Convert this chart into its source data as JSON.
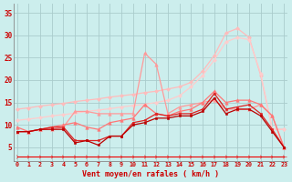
{
  "x": [
    0,
    1,
    2,
    3,
    4,
    5,
    6,
    7,
    8,
    9,
    10,
    11,
    12,
    13,
    14,
    15,
    16,
    17,
    18,
    19,
    20,
    21,
    22,
    23
  ],
  "background_color": "#cceeed",
  "grid_color": "#aacccc",
  "xlabel": "Vent moyen/en rafales ( km/h )",
  "ylim": [
    2,
    37
  ],
  "xlim": [
    -0.3,
    23.3
  ],
  "yticks": [
    5,
    10,
    15,
    20,
    25,
    30,
    35
  ],
  "lines": [
    {
      "color": "#ffbbbb",
      "y": [
        13.5,
        13.8,
        14.2,
        14.5,
        14.8,
        15.2,
        15.5,
        15.8,
        16.2,
        16.5,
        16.8,
        17.2,
        17.5,
        18.0,
        18.5,
        19.5,
        22.0,
        25.5,
        30.5,
        31.5,
        29.5,
        21.0,
        9.0,
        9.0
      ],
      "marker": "D",
      "markersize": 2.0,
      "linewidth": 0.9,
      "zorder": 2
    },
    {
      "color": "#ffcccc",
      "y": [
        11.0,
        11.3,
        11.6,
        12.0,
        12.3,
        12.6,
        13.0,
        13.3,
        13.6,
        14.0,
        14.3,
        14.6,
        15.0,
        15.5,
        16.5,
        18.5,
        21.0,
        24.5,
        28.5,
        29.5,
        29.0,
        21.5,
        9.0,
        9.0
      ],
      "marker": "D",
      "markersize": 2.0,
      "linewidth": 0.9,
      "zorder": 2
    },
    {
      "color": "#ff9999",
      "y": [
        8.5,
        8.5,
        9.0,
        9.0,
        9.5,
        13.0,
        13.0,
        12.5,
        12.5,
        12.5,
        12.5,
        26.0,
        23.5,
        12.5,
        14.0,
        14.5,
        15.0,
        15.5,
        13.5,
        13.5,
        13.5,
        14.5,
        12.0,
        5.0
      ],
      "marker": "^",
      "markersize": 2.5,
      "linewidth": 0.9,
      "zorder": 3
    },
    {
      "color": "#ff7777",
      "y": [
        9.5,
        8.5,
        9.0,
        9.5,
        10.0,
        10.5,
        9.5,
        9.0,
        10.5,
        11.0,
        11.5,
        14.5,
        12.5,
        12.0,
        13.0,
        13.5,
        15.0,
        17.5,
        15.0,
        15.5,
        15.5,
        14.5,
        12.0,
        5.0
      ],
      "marker": "^",
      "markersize": 2.5,
      "linewidth": 0.9,
      "zorder": 3
    },
    {
      "color": "#dd2222",
      "y": [
        8.5,
        8.5,
        9.0,
        9.5,
        9.5,
        6.5,
        6.5,
        6.5,
        7.5,
        7.5,
        10.5,
        11.0,
        12.5,
        12.0,
        12.5,
        12.5,
        13.5,
        17.0,
        13.5,
        14.0,
        14.5,
        12.5,
        9.0,
        5.0
      ],
      "marker": "s",
      "markersize": 1.8,
      "linewidth": 0.9,
      "zorder": 4
    },
    {
      "color": "#bb0000",
      "y": [
        8.5,
        8.5,
        9.0,
        9.0,
        9.0,
        6.0,
        6.5,
        5.5,
        7.5,
        7.5,
        10.0,
        10.5,
        11.5,
        11.5,
        12.0,
        12.0,
        13.0,
        16.0,
        12.5,
        13.5,
        13.5,
        12.0,
        8.5,
        5.0
      ],
      "marker": "s",
      "markersize": 1.8,
      "linewidth": 0.9,
      "zorder": 4
    },
    {
      "color": "#ee0000",
      "y": [
        3.0,
        3.0,
        3.0,
        3.0,
        3.0,
        3.0,
        3.0,
        3.0,
        3.0,
        3.0,
        3.0,
        3.0,
        3.0,
        3.0,
        3.0,
        3.0,
        3.0,
        3.0,
        3.0,
        3.0,
        3.0,
        3.0,
        3.0,
        3.0
      ],
      "marker": "4",
      "markersize": 4.0,
      "linewidth": 0.8,
      "zorder": 5
    }
  ]
}
